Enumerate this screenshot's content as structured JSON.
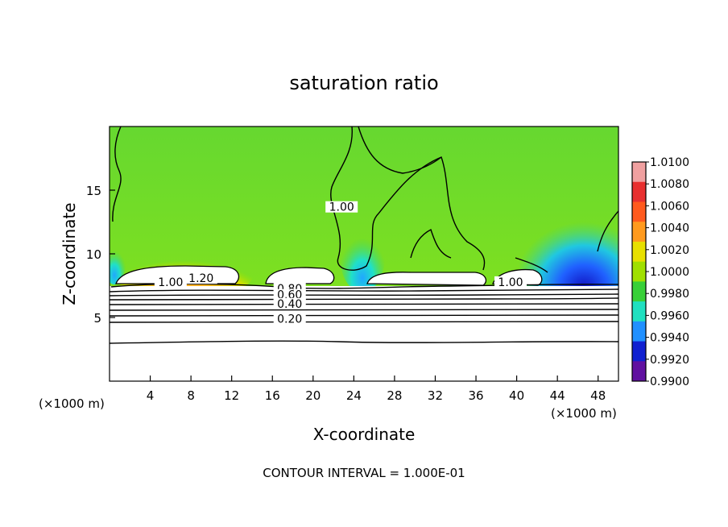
{
  "chart_data": {
    "type": "heatmap",
    "title": "saturation ratio",
    "xlabel": "X-coordinate",
    "ylabel": "Z-coordinate",
    "x_unit": "(×1000 m)",
    "y_unit": "(×1000 m)",
    "xlim": [
      0,
      50
    ],
    "ylim": [
      0,
      20
    ],
    "x_ticks": [
      "4",
      "8",
      "12",
      "16",
      "20",
      "24",
      "28",
      "32",
      "36",
      "40",
      "44",
      "48"
    ],
    "y_ticks": [
      "5",
      "10",
      "15"
    ],
    "colorbar": {
      "min": 0.99,
      "max": 1.01,
      "labels": [
        "1.0100",
        "1.0080",
        "1.0060",
        "1.0040",
        "1.0020",
        "1.0000",
        "0.9980",
        "0.9960",
        "0.9940",
        "0.9920",
        "0.9900"
      ],
      "colors": [
        "#f0a0a0",
        "#e83030",
        "#ff5a1e",
        "#ff9a1e",
        "#e8e000",
        "#a0e000",
        "#38d038",
        "#20e0c0",
        "#2090ff",
        "#1020d0",
        "#6010a0"
      ]
    },
    "contour_labels": [
      {
        "text": "1.00",
        "x": 22.8,
        "y": 13.5
      },
      {
        "text": "1.00",
        "x": 6.0,
        "y": 7.6
      },
      {
        "text": "1.20",
        "x": 9.0,
        "y": 7.9
      },
      {
        "text": "1.00",
        "x": 39.4,
        "y": 7.6
      },
      {
        "text": "0.80",
        "x": 17.7,
        "y": 7.1
      },
      {
        "text": "0.60",
        "x": 17.7,
        "y": 6.6
      },
      {
        "text": "0.40",
        "x": 17.7,
        "y": 5.9
      },
      {
        "text": "0.20",
        "x": 17.7,
        "y": 4.7
      }
    ],
    "annotation": "CONTOUR INTERVAL = 1.000E-01"
  }
}
